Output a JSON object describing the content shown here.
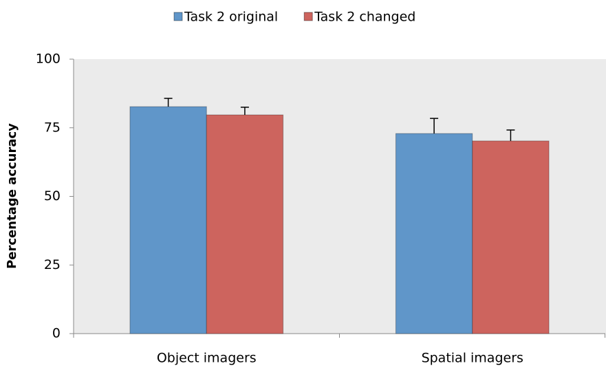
{
  "chart_data": {
    "type": "bar",
    "categories": [
      "Object imagers",
      "Spatial imagers"
    ],
    "series": [
      {
        "name": "Task 2 original",
        "color": "#6096c9",
        "values": [
          82.7,
          72.9
        ],
        "errors": [
          3.0,
          5.5
        ]
      },
      {
        "name": "Task 2 changed",
        "color": "#cd645e",
        "values": [
          79.7,
          70.2
        ],
        "errors": [
          2.8,
          4.0
        ]
      }
    ],
    "y_label": "Percentage accuracy",
    "ylim": [
      0,
      100
    ],
    "yticks": [
      0,
      25,
      50,
      75,
      100
    ],
    "grid": false,
    "legend": "top"
  }
}
